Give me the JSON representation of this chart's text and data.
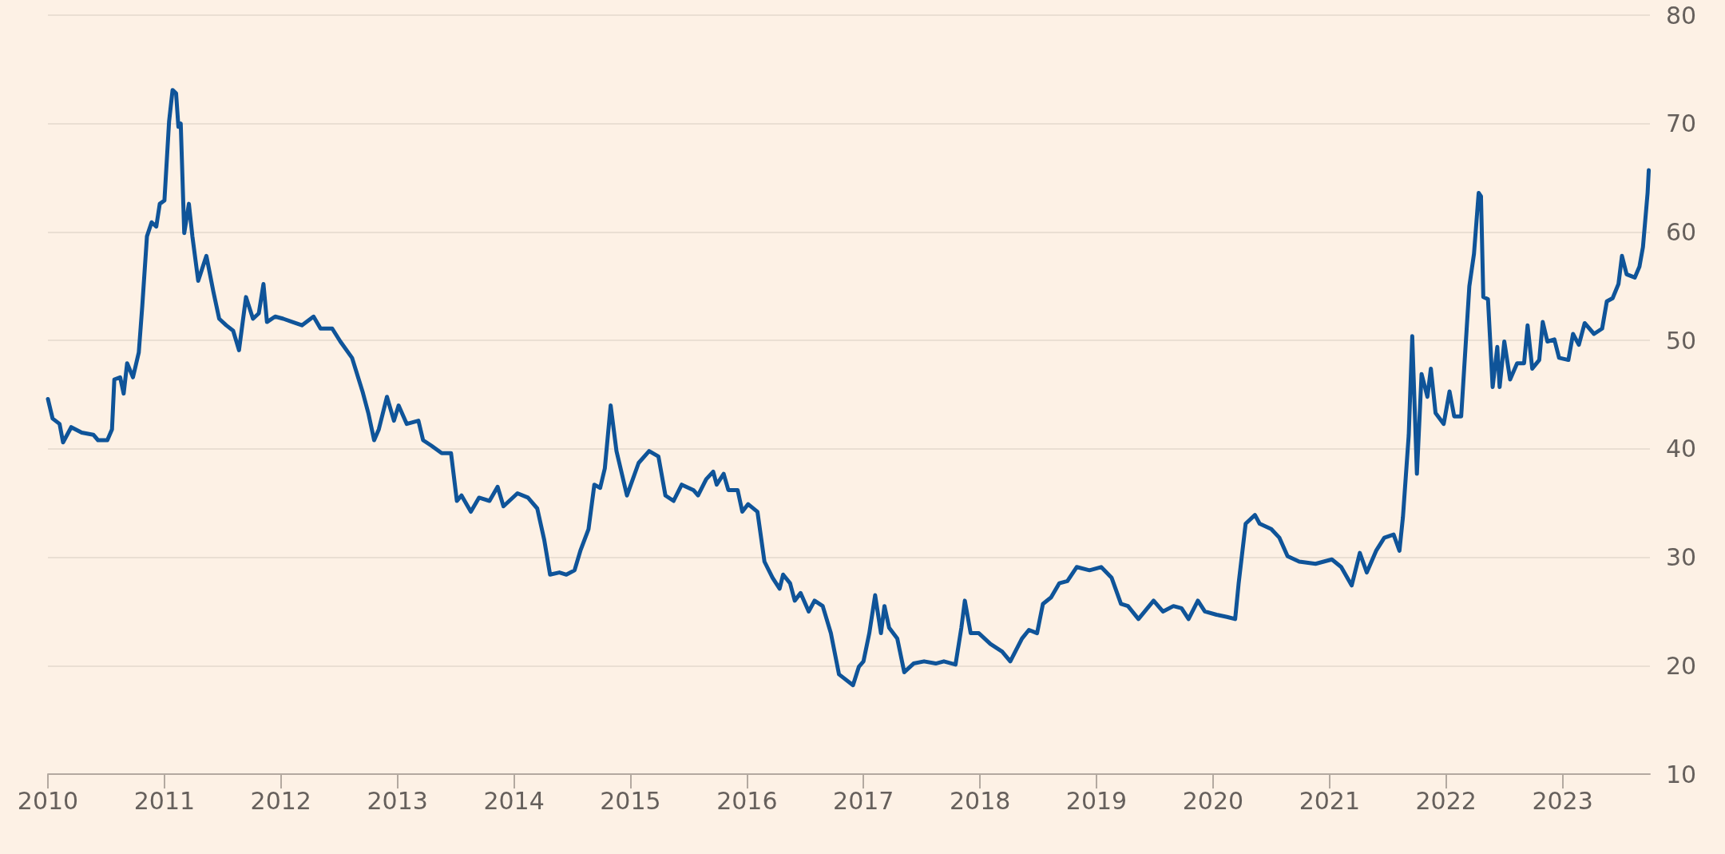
{
  "chart_data": {
    "type": "line",
    "x": [
      2010.0,
      2010.04,
      2010.1,
      2010.13,
      2010.2,
      2010.29,
      2010.39,
      2010.43,
      2010.51,
      2010.55,
      2010.57,
      2010.62,
      2010.65,
      2010.68,
      2010.73,
      2010.78,
      2010.81,
      2010.85,
      2010.89,
      2010.93,
      2010.96,
      2011.0,
      2011.04,
      2011.07,
      2011.1,
      2011.12,
      2011.14,
      2011.17,
      2011.21,
      2011.24,
      2011.29,
      2011.36,
      2011.42,
      2011.47,
      2011.53,
      2011.59,
      2011.64,
      2011.7,
      2011.76,
      2011.81,
      2011.85,
      2011.88,
      2011.95,
      2012.02,
      2012.1,
      2012.18,
      2012.28,
      2012.34,
      2012.44,
      2012.51,
      2012.61,
      2012.7,
      2012.75,
      2012.8,
      2012.84,
      2012.91,
      2012.97,
      2013.01,
      2013.08,
      2013.18,
      2013.22,
      2013.29,
      2013.38,
      2013.46,
      2013.51,
      2013.55,
      2013.63,
      2013.7,
      2013.79,
      2013.86,
      2013.91,
      2014.03,
      2014.12,
      2014.2,
      2014.26,
      2014.31,
      2014.39,
      2014.45,
      2014.52,
      2014.57,
      2014.64,
      2014.69,
      2014.74,
      2014.78,
      2014.83,
      2014.88,
      2014.97,
      2015.07,
      2015.16,
      2015.24,
      2015.3,
      2015.37,
      2015.44,
      2015.54,
      2015.58,
      2015.65,
      2015.71,
      2015.74,
      2015.8,
      2015.84,
      2015.92,
      2015.96,
      2016.01,
      2016.09,
      2016.15,
      2016.22,
      2016.28,
      2016.31,
      2016.37,
      2016.41,
      2016.46,
      2016.53,
      2016.58,
      2016.65,
      2016.72,
      2016.79,
      2016.91,
      2016.96,
      2017.0,
      2017.05,
      2017.1,
      2017.15,
      2017.18,
      2017.22,
      2017.29,
      2017.35,
      2017.43,
      2017.52,
      2017.62,
      2017.69,
      2017.79,
      2017.84,
      2017.87,
      2017.92,
      2017.99,
      2018.09,
      2018.19,
      2018.26,
      2018.36,
      2018.42,
      2018.49,
      2018.54,
      2018.61,
      2018.68,
      2018.75,
      2018.83,
      2018.94,
      2019.04,
      2019.13,
      2019.21,
      2019.27,
      2019.36,
      2019.49,
      2019.57,
      2019.66,
      2019.73,
      2019.79,
      2019.87,
      2019.93,
      2020.03,
      2020.12,
      2020.19,
      2020.22,
      2020.28,
      2020.36,
      2020.4,
      2020.5,
      2020.57,
      2020.64,
      2020.74,
      2020.88,
      2021.02,
      2021.1,
      2021.19,
      2021.26,
      2021.32,
      2021.4,
      2021.47,
      2021.55,
      2021.6,
      2021.63,
      2021.68,
      2021.71,
      2021.75,
      2021.79,
      2021.84,
      2021.87,
      2021.91,
      2021.98,
      2022.03,
      2022.07,
      2022.13,
      2022.2,
      2022.24,
      2022.28,
      2022.3,
      2022.32,
      2022.36,
      2022.4,
      2022.44,
      2022.46,
      2022.5,
      2022.55,
      2022.61,
      2022.67,
      2022.7,
      2022.74,
      2022.8,
      2022.83,
      2022.87,
      2022.93,
      2022.97,
      2023.05,
      2023.09,
      2023.14,
      2023.19,
      2023.27,
      2023.34,
      2023.38,
      2023.43,
      2023.48,
      2023.51,
      2023.55,
      2023.62,
      2023.66,
      2023.69,
      2023.73,
      2023.74
    ],
    "series": [
      {
        "color": "#0f5499",
        "values": [
          44.6,
          42.8,
          42.3,
          40.6,
          42.0,
          41.5,
          41.3,
          40.8,
          40.8,
          41.8,
          46.4,
          46.6,
          45.1,
          47.9,
          46.6,
          48.9,
          53.2,
          59.6,
          60.9,
          60.5,
          62.6,
          62.9,
          70.2,
          73.1,
          72.8,
          69.7,
          70.0,
          59.9,
          62.6,
          59.6,
          55.5,
          57.8,
          54.5,
          52.0,
          51.4,
          50.9,
          49.1,
          54.0,
          52.0,
          52.5,
          55.2,
          51.7,
          52.2,
          52.0,
          51.7,
          51.4,
          52.2,
          51.1,
          51.1,
          49.9,
          48.4,
          45.3,
          43.3,
          40.8,
          41.8,
          44.8,
          42.6,
          44.0,
          42.3,
          42.6,
          40.8,
          40.3,
          39.6,
          39.6,
          35.2,
          35.7,
          34.2,
          35.5,
          35.2,
          36.5,
          34.7,
          35.9,
          35.5,
          34.5,
          31.6,
          28.4,
          28.6,
          28.4,
          28.8,
          30.6,
          32.6,
          36.7,
          36.4,
          38.2,
          44.0,
          39.8,
          35.7,
          38.7,
          39.8,
          39.3,
          35.7,
          35.2,
          36.7,
          36.2,
          35.7,
          37.2,
          37.9,
          36.7,
          37.7,
          36.2,
          36.2,
          34.2,
          34.9,
          34.2,
          29.6,
          28.1,
          27.1,
          28.4,
          27.6,
          26.0,
          26.7,
          25.0,
          26.0,
          25.5,
          23.0,
          19.2,
          18.2,
          19.9,
          20.4,
          23.0,
          26.5,
          23.0,
          25.5,
          23.5,
          22.5,
          19.4,
          20.2,
          20.4,
          20.2,
          20.4,
          20.1,
          23.5,
          26.0,
          23.0,
          23.0,
          22.0,
          21.3,
          20.4,
          22.5,
          23.3,
          23.0,
          25.7,
          26.3,
          27.6,
          27.8,
          29.1,
          28.8,
          29.1,
          28.1,
          25.7,
          25.5,
          24.3,
          26.0,
          25.0,
          25.5,
          25.3,
          24.3,
          26.0,
          25.0,
          24.7,
          24.5,
          24.3,
          27.6,
          33.1,
          33.9,
          33.1,
          32.6,
          31.8,
          30.1,
          29.6,
          29.4,
          29.8,
          29.1,
          27.4,
          30.4,
          28.6,
          30.6,
          31.8,
          32.1,
          30.6,
          33.7,
          41.3,
          50.4,
          37.7,
          46.9,
          44.8,
          47.4,
          43.3,
          42.3,
          45.3,
          43.0,
          43.0,
          55.0,
          58.0,
          63.6,
          63.3,
          54.0,
          53.8,
          45.7,
          49.4,
          45.7,
          49.9,
          46.4,
          47.9,
          47.9,
          51.4,
          47.4,
          48.2,
          51.7,
          49.9,
          50.1,
          48.4,
          48.2,
          50.6,
          49.6,
          51.6,
          50.6,
          51.1,
          53.6,
          53.9,
          55.2,
          57.8,
          56.1,
          55.8,
          56.8,
          58.6,
          63.6,
          65.7
        ]
      }
    ],
    "xlim": [
      2010,
      2023.75
    ],
    "xticks": [
      2010,
      2011,
      2012,
      2013,
      2014,
      2015,
      2016,
      2017,
      2018,
      2019,
      2020,
      2021,
      2022,
      2023
    ],
    "ylim": [
      10,
      80
    ],
    "yticks": [
      10,
      20,
      30,
      40,
      50,
      60,
      70,
      80
    ],
    "grid": "y",
    "marker": "none",
    "line_style": "solid"
  }
}
